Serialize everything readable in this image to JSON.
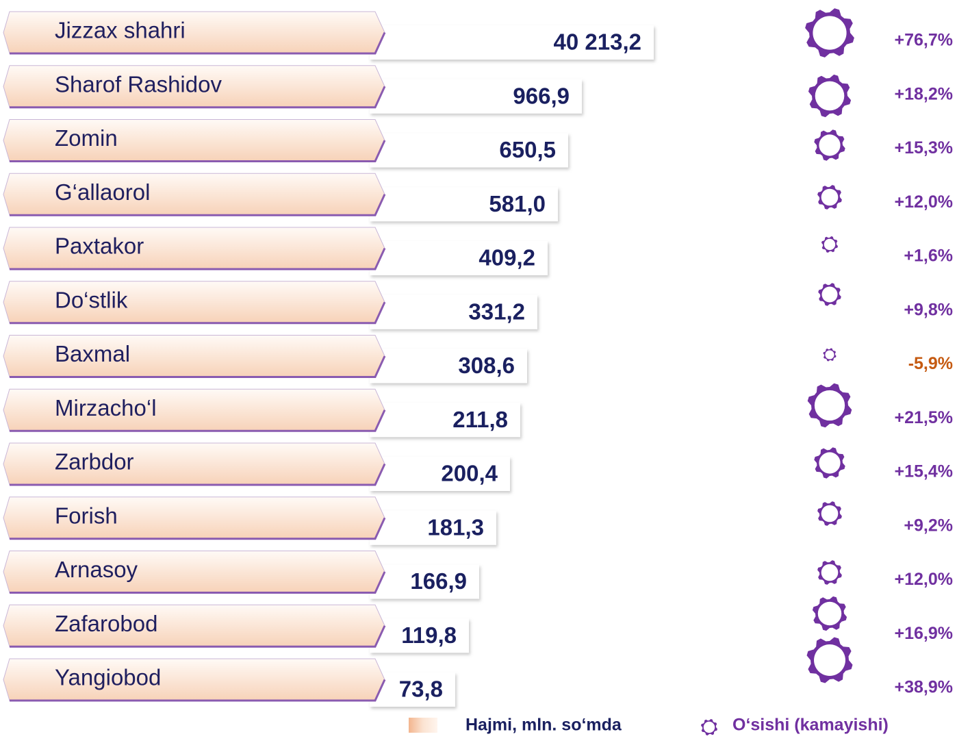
{
  "rows": [
    {
      "name": "Jizzax  shahri",
      "volume": "40 213,2",
      "growth": "+76,7%"
    },
    {
      "name": "Sharof Rashidov",
      "volume": "966,9",
      "growth": "+18,2%"
    },
    {
      "name": "Zomin",
      "volume": "650,5",
      "growth": "+15,3%"
    },
    {
      "name": "G‘allaorol",
      "volume": "581,0",
      "growth": "+12,0%"
    },
    {
      "name": "Paxtakor",
      "volume": "409,2",
      "growth": "+1,6%"
    },
    {
      "name": "Do‘stlik",
      "volume": "331,2",
      "growth": "+9,8%"
    },
    {
      "name": "Baxmal",
      "volume": "308,6",
      "growth": "-5,9%"
    },
    {
      "name": "Mirzacho‘l",
      "volume": "211,8",
      "growth": "+21,5%"
    },
    {
      "name": "Zarbdor",
      "volume": "200,4",
      "growth": "+15,4%"
    },
    {
      "name": "Forish",
      "volume": "181,3",
      "growth": "+9,2%"
    },
    {
      "name": "Arnasoy",
      "volume": "166,9",
      "growth": "+12,0%"
    },
    {
      "name": "Zafarobod",
      "volume": "119,8",
      "growth": "+16,9%"
    },
    {
      "name": "Yangiobod",
      "volume": "73,8",
      "growth": "+38,9%"
    }
  ],
  "legend": {
    "volume": "Hajmi, mln. so‘mda",
    "growth": "O‘sishi (kamayishi)"
  }
}
